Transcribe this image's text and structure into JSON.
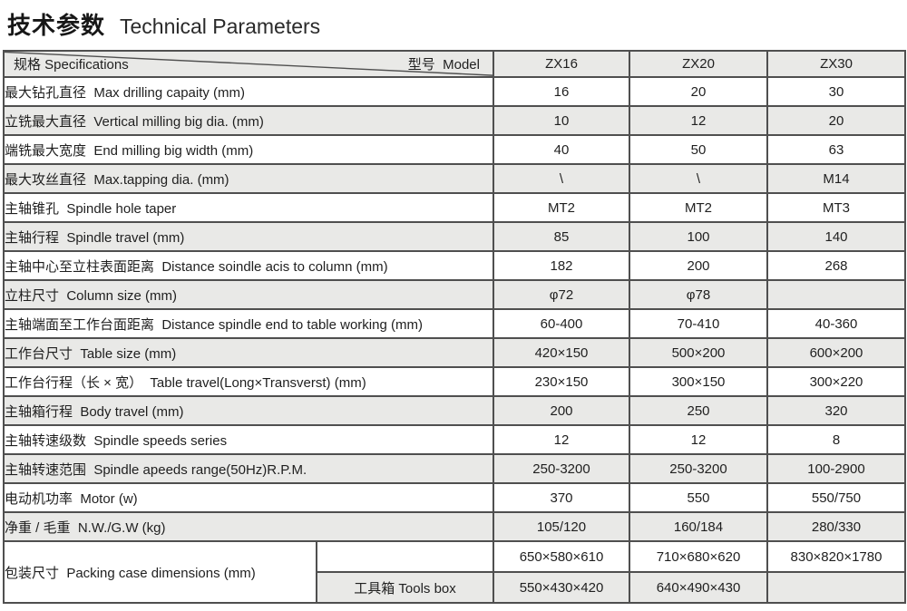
{
  "title": {
    "zh": "技术参数",
    "en": "Technical Parameters"
  },
  "table": {
    "corner": {
      "spec_label": "规格 Specifications",
      "model_label": "型号  Model"
    },
    "models": [
      "ZX16",
      "ZX20",
      "ZX30"
    ],
    "rows": [
      {
        "label": "最大钻孔直径  Max drilling capaity (mm)",
        "values": [
          "16",
          "20",
          "30"
        ]
      },
      {
        "label": "立铣最大直径  Vertical milling big dia. (mm)",
        "values": [
          "10",
          "12",
          "20"
        ]
      },
      {
        "label": "端铣最大宽度  End milling big width (mm)",
        "values": [
          "40",
          "50",
          "63"
        ]
      },
      {
        "label": "最大攻丝直径  Max.tapping dia. (mm)",
        "values": [
          "\\",
          "\\",
          "M14"
        ]
      },
      {
        "label": "主轴锥孔  Spindle hole taper",
        "values": [
          "MT2",
          "MT2",
          "MT3"
        ]
      },
      {
        "label": "主轴行程  Spindle travel (mm)",
        "values": [
          "85",
          "100",
          "140"
        ]
      },
      {
        "label": "主轴中心至立柱表面距离  Distance soindle acis to column (mm)",
        "values": [
          "182",
          "200",
          "268"
        ]
      },
      {
        "label": "立柱尺寸  Column size (mm)",
        "values": [
          "φ72",
          "φ78",
          ""
        ]
      },
      {
        "label": "主轴端面至工作台面距离  Distance spindle end to table working (mm)",
        "values": [
          "60-400",
          "70-410",
          "40-360"
        ]
      },
      {
        "label": "工作台尺寸  Table size (mm)",
        "values": [
          "420×150",
          "500×200",
          "600×200"
        ]
      },
      {
        "label": "工作台行程（长 × 宽）  Table travel(Long×Transverst) (mm)",
        "values": [
          "230×150",
          "300×150",
          "300×220"
        ]
      },
      {
        "label": "主轴箱行程  Body travel (mm)",
        "values": [
          "200",
          "250",
          "320"
        ]
      },
      {
        "label": "主轴转速级数  Spindle speeds series",
        "values": [
          "12",
          "12",
          "8"
        ]
      },
      {
        "label": "主轴转速范围  Spindle apeeds range(50Hz)R.P.M.",
        "values": [
          "250-3200",
          "250-3200",
          "100-2900"
        ]
      },
      {
        "label": "电动机功率  Motor (w)",
        "values": [
          "370",
          "550",
          "550/750"
        ]
      },
      {
        "label": "净重 / 毛重  N.W./G.W (kg)",
        "values": [
          "105/120",
          "160/184",
          "280/330"
        ]
      }
    ],
    "packing": {
      "label": "包装尺寸  Packing case dimensions (mm)",
      "rows": [
        {
          "sub": "",
          "values": [
            "650×580×610",
            "710×680×620",
            "830×820×1780"
          ]
        },
        {
          "sub": "工具箱 Tools box",
          "values": [
            "550×430×420",
            "640×490×430",
            ""
          ]
        }
      ]
    },
    "colors": {
      "border": "#4f4f4f",
      "alt_row_bg": "#e9e9e7",
      "header_bg": "#e9e9e7",
      "text": "#1f1f1f",
      "background": "#ffffff"
    }
  }
}
